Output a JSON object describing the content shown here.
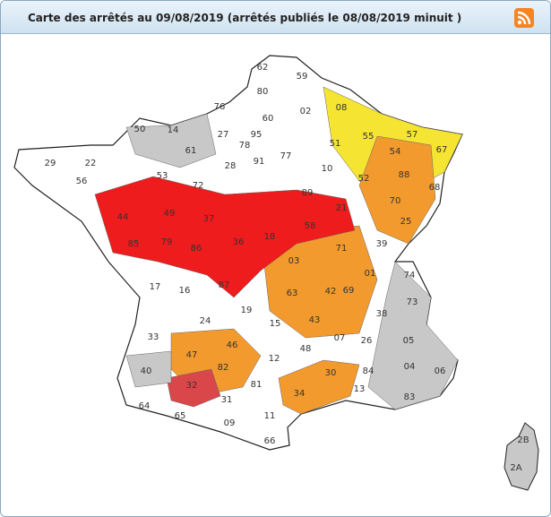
{
  "header": {
    "title": "Carte des arrêtés au 09/08/2019 (arrêtés publiés le 08/08/2019 minuit )"
  },
  "departments": [
    "62",
    "59",
    "80",
    "76",
    "60",
    "02",
    "08",
    "50",
    "14",
    "61",
    "27",
    "78",
    "95",
    "51",
    "55",
    "57",
    "67",
    "54",
    "29",
    "22",
    "56",
    "53",
    "72",
    "28",
    "91",
    "77",
    "10",
    "52",
    "88",
    "68",
    "44",
    "49",
    "37",
    "89",
    "21",
    "70",
    "25",
    "85",
    "79",
    "86",
    "36",
    "18",
    "58",
    "71",
    "39",
    "17",
    "16",
    "87",
    "03",
    "01",
    "74",
    "63",
    "42",
    "69",
    "73",
    "19",
    "15",
    "43",
    "38",
    "24",
    "33",
    "46",
    "07",
    "26",
    "05",
    "47",
    "48",
    "12",
    "82",
    "04",
    "06",
    "40",
    "30",
    "84",
    "32",
    "81",
    "34",
    "13",
    "83",
    "64",
    "31",
    "65",
    "09",
    "11",
    "66",
    "2B",
    "2A"
  ]
}
